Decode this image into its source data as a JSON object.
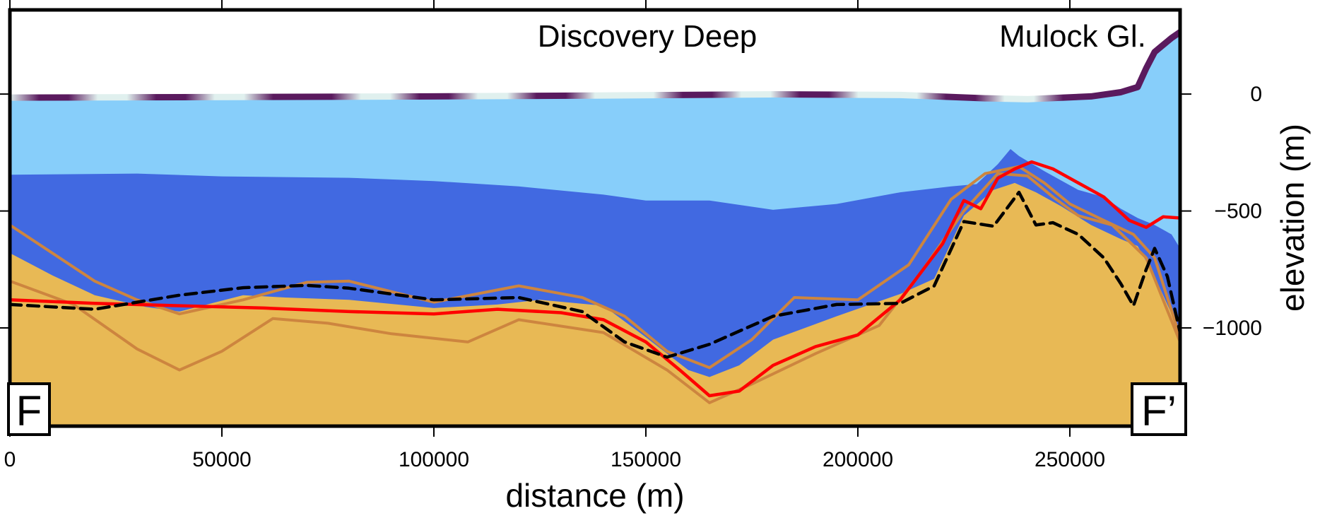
{
  "chart_data": {
    "type": "area",
    "xlabel": "distance (m)",
    "ylabel": "elevation (m)",
    "xlim": [
      0,
      276000
    ],
    "ylim": [
      -1420,
      360
    ],
    "x_ticks": [
      0,
      50000,
      100000,
      150000,
      200000,
      250000
    ],
    "x_tick_labels": [
      "0",
      "50000",
      "100000",
      "150000",
      "200000",
      "250000"
    ],
    "y_ticks": [
      0,
      -500,
      -1000
    ],
    "y_tick_labels": [
      "0",
      "−500",
      "−1000"
    ],
    "annotations": [
      {
        "text": "Discovery Deep",
        "x": 150000,
        "y": 250
      },
      {
        "text": "Mulock Gl.",
        "x": 250000,
        "y": 250
      }
    ],
    "corner_labels": {
      "start": "F",
      "end": "F’"
    },
    "colors": {
      "water": "#87cefa",
      "deep_layer": "#4169e1",
      "sediment": "#e8b955",
      "sediment_lines": "#cd853f",
      "red_line": "#ff0000",
      "dashed_line": "#000000",
      "surface_dark": "#5a1a5e",
      "surface_light": "#e0f0ee"
    },
    "layers": {
      "water_top": [
        [
          0,
          -15
        ],
        [
          20000,
          -14
        ],
        [
          60000,
          -12
        ],
        [
          100000,
          -10
        ],
        [
          140000,
          -6
        ],
        [
          180000,
          -1
        ],
        [
          210000,
          -4
        ],
        [
          230000,
          -18
        ],
        [
          240000,
          -22
        ],
        [
          255000,
          -10
        ],
        [
          262000,
          8
        ],
        [
          266000,
          30
        ],
        [
          268000,
          110
        ],
        [
          270000,
          180
        ],
        [
          272000,
          210
        ],
        [
          274000,
          240
        ],
        [
          276000,
          265
        ]
      ],
      "blue_top": [
        [
          0,
          -345
        ],
        [
          30000,
          -340
        ],
        [
          50000,
          -352
        ],
        [
          80000,
          -358
        ],
        [
          100000,
          -372
        ],
        [
          120000,
          -395
        ],
        [
          140000,
          -430
        ],
        [
          150000,
          -455
        ],
        [
          165000,
          -455
        ],
        [
          180000,
          -495
        ],
        [
          195000,
          -470
        ],
        [
          210000,
          -420
        ],
        [
          222000,
          -395
        ],
        [
          228000,
          -385
        ],
        [
          233000,
          -300
        ],
        [
          236000,
          -235
        ],
        [
          238000,
          -265
        ],
        [
          244000,
          -330
        ],
        [
          252000,
          -410
        ],
        [
          258000,
          -440
        ],
        [
          262000,
          -490
        ],
        [
          266000,
          -530
        ],
        [
          270000,
          -560
        ],
        [
          274000,
          -600
        ],
        [
          276000,
          -660
        ]
      ],
      "sediment_top": [
        [
          0,
          -680
        ],
        [
          10000,
          -775
        ],
        [
          20000,
          -860
        ],
        [
          32000,
          -910
        ],
        [
          40000,
          -930
        ],
        [
          55000,
          -860
        ],
        [
          65000,
          -870
        ],
        [
          80000,
          -880
        ],
        [
          100000,
          -915
        ],
        [
          115000,
          -900
        ],
        [
          125000,
          -880
        ],
        [
          140000,
          -905
        ],
        [
          150000,
          -1040
        ],
        [
          160000,
          -1180
        ],
        [
          165000,
          -1210
        ],
        [
          172000,
          -1160
        ],
        [
          180000,
          -1050
        ],
        [
          195000,
          -950
        ],
        [
          210000,
          -855
        ],
        [
          218000,
          -790
        ],
        [
          225000,
          -520
        ],
        [
          232000,
          -410
        ],
        [
          237000,
          -380
        ],
        [
          242000,
          -420
        ],
        [
          248000,
          -480
        ],
        [
          255000,
          -560
        ],
        [
          262000,
          -620
        ],
        [
          266000,
          -650
        ],
        [
          270000,
          -780
        ],
        [
          274000,
          -940
        ],
        [
          276000,
          -1070
        ]
      ]
    },
    "series": [
      {
        "color": "red",
        "style": "solid",
        "x": [
          0,
          20000,
          40000,
          60000,
          80000,
          100000,
          115000,
          130000,
          140000,
          150000,
          158000,
          165000,
          172000,
          180000,
          190000,
          200000,
          210000,
          220000,
          225000,
          229000,
          233000,
          237000,
          241000,
          246000,
          252000,
          258000,
          264000,
          268000,
          272000,
          276000
        ],
        "y": [
          -880,
          -895,
          -905,
          -915,
          -930,
          -940,
          -920,
          -935,
          -965,
          -1060,
          -1180,
          -1290,
          -1270,
          -1160,
          -1080,
          -1030,
          -880,
          -640,
          -455,
          -490,
          -360,
          -320,
          -290,
          -320,
          -380,
          -440,
          -540,
          -570,
          -525,
          -530
        ]
      },
      {
        "color": "black",
        "style": "dashed",
        "x": [
          0,
          20000,
          40000,
          55000,
          70000,
          80000,
          100000,
          120000,
          135000,
          145000,
          155000,
          165000,
          180000,
          195000,
          210000,
          218000,
          225000,
          232000,
          238000,
          242000,
          246000,
          252000,
          258000,
          262000,
          265000,
          268000,
          270000,
          273000,
          276000
        ],
        "y": [
          -900,
          -920,
          -860,
          -828,
          -818,
          -830,
          -880,
          -870,
          -930,
          -1060,
          -1125,
          -1070,
          -950,
          -900,
          -895,
          -820,
          -545,
          -565,
          -420,
          -560,
          -550,
          -600,
          -700,
          -810,
          -905,
          -750,
          -660,
          -780,
          -1020
        ]
      },
      {
        "color": "peru",
        "style": "solid",
        "x": [
          0,
          10000,
          20000,
          30000,
          40000,
          55000,
          70000,
          80000,
          100000,
          120000,
          135000,
          145000,
          155000,
          165000,
          175000,
          185000,
          200000,
          212000,
          222000,
          230000,
          238000,
          244000,
          250000,
          258000,
          265000,
          270000,
          276000
        ],
        "y": [
          -560,
          -680,
          -800,
          -880,
          -940,
          -880,
          -805,
          -800,
          -890,
          -820,
          -870,
          -950,
          -1100,
          -1170,
          -1050,
          -870,
          -880,
          -730,
          -450,
          -340,
          -310,
          -380,
          -470,
          -540,
          -600,
          -700,
          -1040
        ]
      },
      {
        "color": "peru",
        "style": "solid",
        "x": [
          0,
          15000,
          30000,
          40000,
          50000,
          62000,
          75000,
          90000,
          108000,
          120000,
          140000,
          155000,
          165000,
          175000,
          190000,
          205000,
          215000,
          225000,
          233000,
          240000,
          246000,
          252000,
          260000,
          268000,
          276000
        ],
        "y": [
          -800,
          -900,
          -1090,
          -1180,
          -1100,
          -960,
          -980,
          -1025,
          -1060,
          -965,
          -1020,
          -1180,
          -1320,
          -1240,
          -1110,
          -990,
          -760,
          -500,
          -340,
          -350,
          -440,
          -520,
          -560,
          -700,
          -1060
        ]
      }
    ]
  }
}
